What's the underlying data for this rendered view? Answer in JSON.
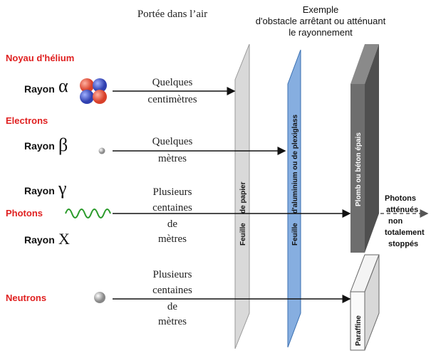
{
  "header": {
    "range_title": "Portée dans l’air",
    "obstacle_title": [
      "Exemple",
      "d'obstacle arrêtant ou atténuant",
      "le rayonnement"
    ]
  },
  "labels": [
    {
      "category": "Noyau d'hélium",
      "ray": "Rayon",
      "symbol": "α"
    },
    {
      "category": "Electrons",
      "ray": "Rayon",
      "symbol": "β"
    },
    {
      "ray": "Rayon",
      "symbol": "γ"
    },
    {
      "category": "Photons"
    },
    {
      "ray": "Rayon",
      "symbol": "X"
    },
    {
      "category": "Neutrons"
    }
  ],
  "ranges": [
    [
      "Quelques",
      "centimètres"
    ],
    [
      "Quelques",
      "mètres"
    ],
    [
      "Plusieurs",
      "centaines",
      "de",
      "mètres"
    ],
    [
      "Plusieurs",
      "centaines",
      "de",
      "mètres"
    ]
  ],
  "obstacles": [
    {
      "lines": [
        "Feuille",
        "de papier"
      ]
    },
    {
      "lines": [
        "Feuille",
        "d'aluminium ou de plexiglass"
      ]
    },
    {
      "lines": [
        "Plomb ou béton épais"
      ]
    },
    {
      "lines": [
        "Paraffine"
      ]
    }
  ],
  "note": [
    "Photons",
    "atténués",
    "non",
    "totalement",
    "stoppés"
  ]
}
